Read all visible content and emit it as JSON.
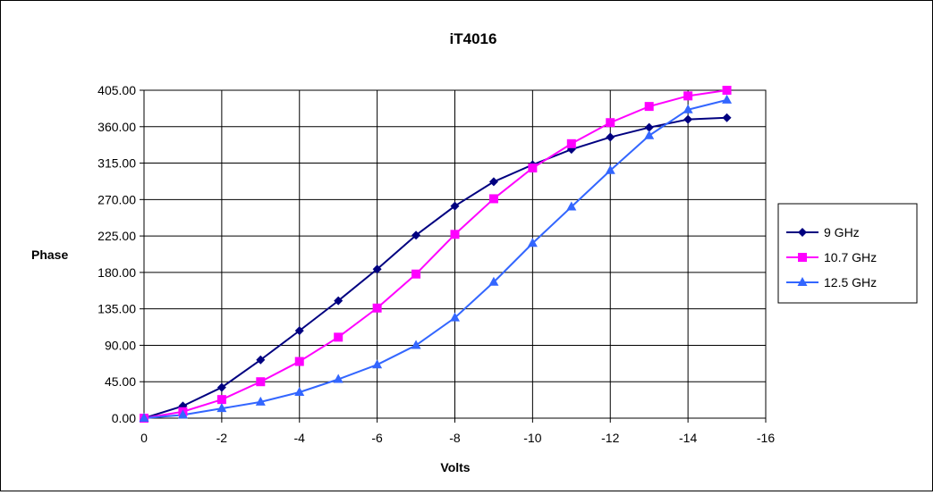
{
  "chart_data": {
    "type": "line",
    "title": "iT4016",
    "xlabel": "Volts",
    "ylabel": "Phase",
    "x_ticks": [
      "0",
      "-2",
      "-4",
      "-6",
      "-8",
      "-10",
      "-12",
      "-14",
      "-16"
    ],
    "y_ticks": [
      "0.00",
      "45.00",
      "90.00",
      "135.00",
      "180.00",
      "225.00",
      "270.00",
      "315.00",
      "360.00",
      "405.00"
    ],
    "xlim": [
      0,
      -16
    ],
    "ylim": [
      0,
      405
    ],
    "grid": true,
    "legend_position": "right",
    "x": [
      0,
      -1,
      -2,
      -3,
      -4,
      -5,
      -6,
      -7,
      -8,
      -9,
      -10,
      -11,
      -12,
      -13,
      -14,
      -15
    ],
    "series": [
      {
        "name": "9 GHz",
        "marker": "diamond",
        "color": "#000080",
        "values": [
          0,
          15,
          38,
          72,
          108,
          145,
          184,
          226,
          262,
          292,
          313,
          332,
          347,
          359,
          369,
          371
        ]
      },
      {
        "name": "10.7 GHz",
        "marker": "square",
        "color": "#FF00FF",
        "values": [
          0,
          8,
          23,
          45,
          70,
          100,
          136,
          178,
          227,
          271,
          309,
          339,
          365,
          385,
          398,
          405
        ]
      },
      {
        "name": "12.5 GHz",
        "marker": "triangle",
        "color": "#3366FF",
        "values": [
          0,
          4,
          12,
          20,
          32,
          48,
          66,
          90,
          124,
          168,
          216,
          261,
          306,
          349,
          381,
          393
        ]
      }
    ]
  }
}
